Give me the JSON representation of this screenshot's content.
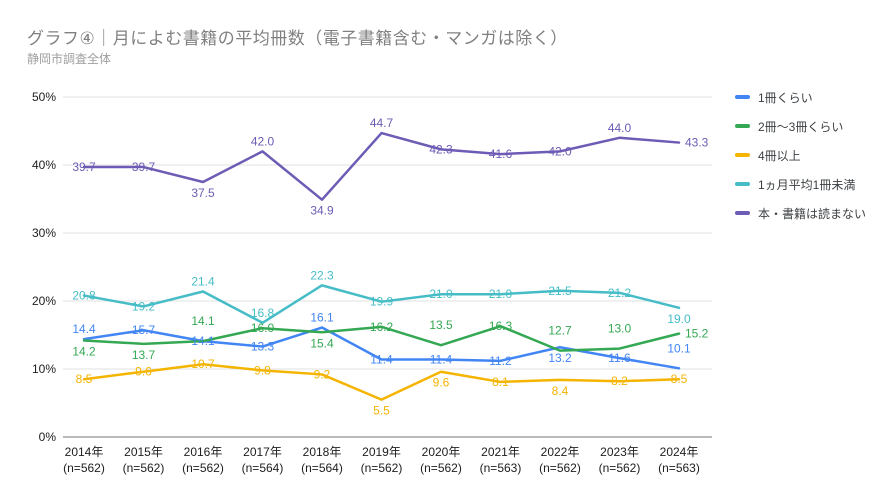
{
  "header": {
    "title": "グラフ④｜月によむ書籍の平均冊数（電子書籍含む・マンガは除く）",
    "subtitle": "静岡市調査全体"
  },
  "chart_data": {
    "type": "line",
    "title": "グラフ④｜月によむ書籍の平均冊数（電子書籍含む・マンガは除く）",
    "subtitle": "静岡市調査全体",
    "ylim": [
      0,
      50
    ],
    "y_tick_labels": [
      "0%",
      "10%",
      "20%",
      "30%",
      "40%",
      "50%"
    ],
    "grid": true,
    "legend_position": "right",
    "x_years": [
      "2014年",
      "2015年",
      "2016年",
      "2017年",
      "2018年",
      "2019年",
      "2020年",
      "2021年",
      "2022年",
      "2023年",
      "2024年"
    ],
    "x_n_labels": [
      "(n=562)",
      "(n=562)",
      "(n=562)",
      "(n=564)",
      "(n=564)",
      "(n=562)",
      "(n=562)",
      "(n=563)",
      "(n=562)",
      "(n=562)",
      "(n=563)"
    ],
    "series": [
      {
        "name": "1冊くらい",
        "color": "#4285f4",
        "values": [
          14.4,
          15.7,
          14.1,
          13.3,
          16.1,
          11.4,
          11.4,
          11.2,
          13.2,
          11.6,
          10.1
        ],
        "label_pos": [
          "a",
          "c",
          "c",
          "c",
          "a",
          "c",
          "c",
          "c",
          "b",
          "c",
          "A"
        ]
      },
      {
        "name": "2冊～3冊くらい",
        "color": "#34a853",
        "values": [
          14.2,
          13.7,
          14.1,
          16.0,
          15.4,
          16.2,
          13.5,
          16.3,
          12.7,
          13.0,
          15.2
        ],
        "label_pos": [
          "b",
          "b",
          "A",
          "c",
          "b",
          "c",
          "A",
          "c",
          "A",
          "A",
          "r"
        ]
      },
      {
        "name": "4冊以上",
        "color": "#f4b400",
        "values": [
          8.5,
          9.6,
          10.7,
          9.8,
          9.2,
          5.5,
          9.6,
          8.1,
          8.4,
          8.2,
          8.5
        ],
        "label_pos": [
          "c",
          "c",
          "c",
          "c",
          "c",
          "b",
          "b",
          "c",
          "b",
          "c",
          "c"
        ]
      },
      {
        "name": "1ヵ月平均1冊未満",
        "color": "#46bdc6",
        "values": [
          20.8,
          19.2,
          21.4,
          16.8,
          22.3,
          19.9,
          21.0,
          21.0,
          21.5,
          21.2,
          19.0
        ],
        "label_pos": [
          "c",
          "c",
          "a",
          "a",
          "a",
          "c",
          "c",
          "c",
          "c",
          "c",
          "b"
        ]
      },
      {
        "name": "本・書籍は読まない",
        "color": "#6d5bb5",
        "values": [
          39.7,
          39.7,
          37.5,
          42.0,
          34.9,
          44.7,
          42.3,
          41.6,
          42.0,
          44.0,
          43.3
        ],
        "label_pos": [
          "c",
          "c",
          "b",
          "a",
          "b",
          "a",
          "c",
          "c",
          "c",
          "a",
          "r"
        ]
      }
    ],
    "style": {
      "gridline_color": "#e0e0e0",
      "axis_line_color": "#757575",
      "tick_label_color": "#202020",
      "title_color": "#808080",
      "subtitle_color": "#9e9e9e"
    }
  }
}
